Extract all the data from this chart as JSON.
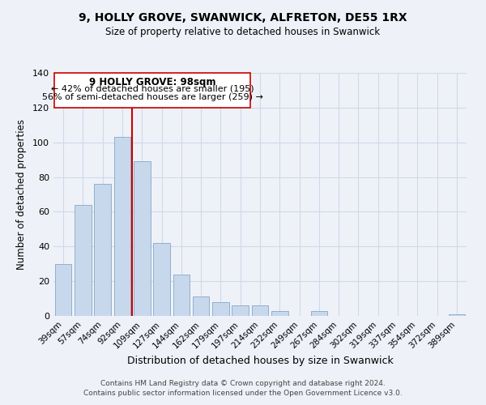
{
  "title": "9, HOLLY GROVE, SWANWICK, ALFRETON, DE55 1RX",
  "subtitle": "Size of property relative to detached houses in Swanwick",
  "xlabel": "Distribution of detached houses by size in Swanwick",
  "ylabel": "Number of detached properties",
  "bar_labels": [
    "39sqm",
    "57sqm",
    "74sqm",
    "92sqm",
    "109sqm",
    "127sqm",
    "144sqm",
    "162sqm",
    "179sqm",
    "197sqm",
    "214sqm",
    "232sqm",
    "249sqm",
    "267sqm",
    "284sqm",
    "302sqm",
    "319sqm",
    "337sqm",
    "354sqm",
    "372sqm",
    "389sqm"
  ],
  "bar_values": [
    30,
    64,
    76,
    103,
    89,
    42,
    24,
    11,
    8,
    6,
    6,
    3,
    0,
    3,
    0,
    0,
    0,
    0,
    0,
    0,
    1
  ],
  "bar_color": "#c8d8ec",
  "bar_edge_color": "#8fb0cc",
  "vline_x": 4.0,
  "vline_color": "#cc0000",
  "annotation_line1": "9 HOLLY GROVE: 98sqm",
  "annotation_line2": "← 42% of detached houses are smaller (195)",
  "annotation_line3": "56% of semi-detached houses are larger (259) →",
  "ylim": [
    0,
    140
  ],
  "yticks": [
    0,
    20,
    40,
    60,
    80,
    100,
    120,
    140
  ],
  "footer_line1": "Contains HM Land Registry data © Crown copyright and database right 2024.",
  "footer_line2": "Contains public sector information licensed under the Open Government Licence v3.0.",
  "bg_color": "#eef2f8",
  "plot_bg_color": "#eef2f8",
  "grid_color": "#d0d8e8"
}
